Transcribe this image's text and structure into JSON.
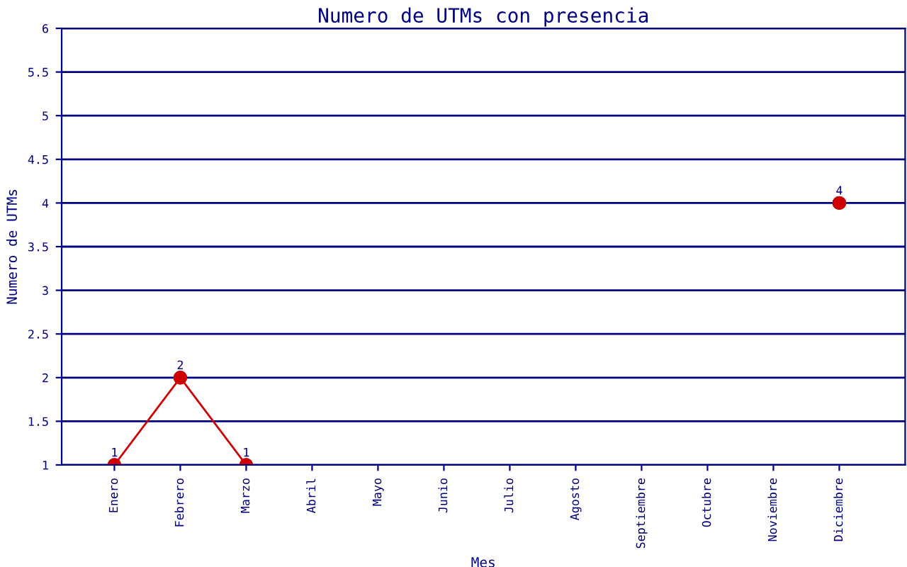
{
  "chart_data": {
    "type": "line",
    "title": "Numero de UTMs con presencia",
    "xlabel": "Mes",
    "ylabel": "Numero de UTMs",
    "categories": [
      "Enero",
      "Febrero",
      "Marzo",
      "Abril",
      "Mayo",
      "Junio",
      "Julio",
      "Agosto",
      "Septiembre",
      "Octubre",
      "Noviembre",
      "Diciembre"
    ],
    "series": [
      {
        "color": "#cc0000",
        "values": [
          1,
          2,
          1,
          null,
          null,
          null,
          null,
          null,
          null,
          null,
          null,
          4
        ]
      }
    ],
    "ylim": [
      1,
      6
    ],
    "yticks": [
      1,
      1.5,
      2,
      2.5,
      3,
      3.5,
      4,
      4.5,
      5,
      5.5,
      6
    ],
    "grid": "y",
    "marker": "circle",
    "line_style": "solid",
    "data_labels": true
  }
}
